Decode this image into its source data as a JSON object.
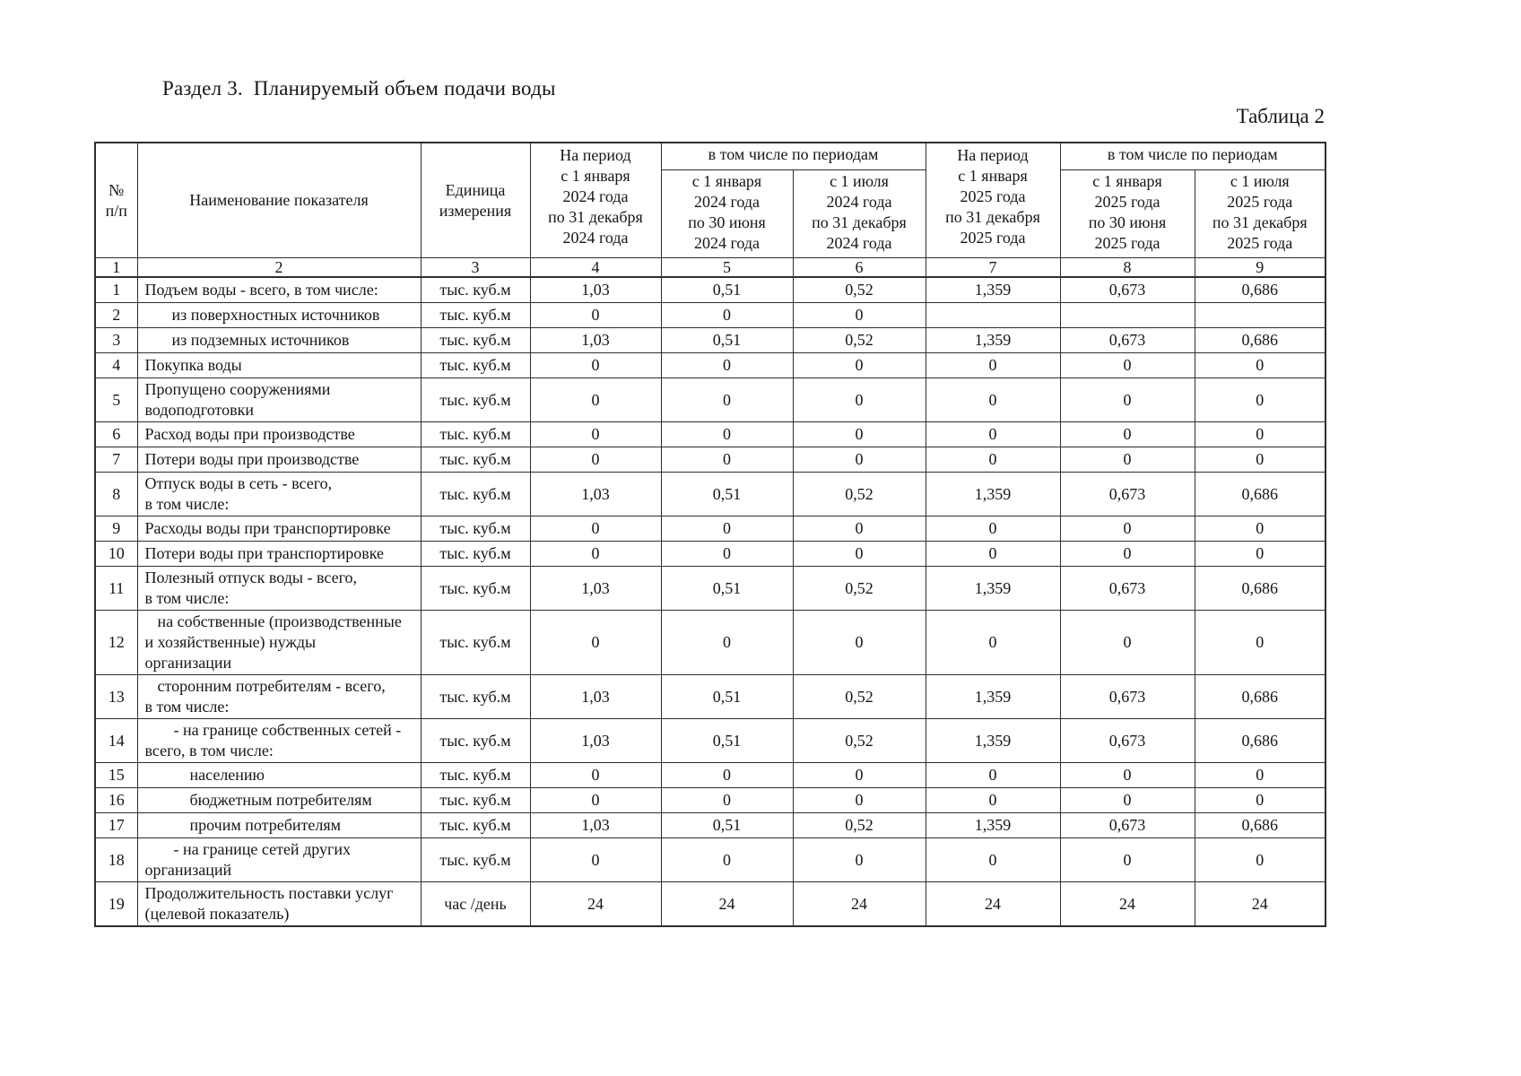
{
  "page": {
    "section_title": "Раздел 3.  Планируемый объем подачи воды",
    "table_label": "Таблица 2"
  },
  "table": {
    "header": {
      "num": "№\nп/п",
      "name": "Наименование показателя",
      "unit": "Единица\nизмерения",
      "period_2024": "На период\nс 1 января\n2024 года\nпо 31 декабря\n2024 года",
      "including_2024": "в том числе по периодам",
      "sub_2024_first_half": "с 1 января\n2024 года\nпо 30 июня\n2024 года",
      "sub_2024_second_half": "с 1 июля\n2024 года\nпо 31 декабря\n2024 года",
      "period_2025": "На период\nс 1 января\n2025 года\nпо 31 декабря\n2025 года",
      "including_2025": "в том числе по периодам",
      "sub_2025_first_half": "с 1 января\n2025 года\nпо 30 июня\n2025 года",
      "sub_2025_second_half": "с 1 июля\n2025 года\nпо 31 декабря\n2025 года",
      "column_numbers": [
        "1",
        "2",
        "3",
        "4",
        "5",
        "6",
        "7",
        "8",
        "9"
      ]
    },
    "rows": [
      {
        "num": "1",
        "indent": 0,
        "lines": 1,
        "name": "Подъем воды - всего, в том числе:",
        "unit": "тыс. куб.м",
        "values": [
          "1,03",
          "0,51",
          "0,52",
          "1,359",
          "0,673",
          "0,686"
        ]
      },
      {
        "num": "2",
        "indent": 1,
        "lines": 1,
        "name": "из поверхностных источников",
        "unit": "тыс. куб.м",
        "values": [
          "0",
          "0",
          "0",
          "",
          "",
          ""
        ]
      },
      {
        "num": "3",
        "indent": 1,
        "lines": 1,
        "name": "из подземных источников",
        "unit": "тыс. куб.м",
        "values": [
          "1,03",
          "0,51",
          "0,52",
          "1,359",
          "0,673",
          "0,686"
        ]
      },
      {
        "num": "4",
        "indent": 0,
        "lines": 1,
        "name": "Покупка воды",
        "unit": "тыс. куб.м",
        "values": [
          "0",
          "0",
          "0",
          "0",
          "0",
          "0"
        ]
      },
      {
        "num": "5",
        "indent": 0,
        "lines": 2,
        "name": "Пропущено сооружениями\nводоподготовки",
        "unit": "тыс. куб.м",
        "values": [
          "0",
          "0",
          "0",
          "0",
          "0",
          "0"
        ]
      },
      {
        "num": "6",
        "indent": 0,
        "lines": 1,
        "name": "Расход воды при производстве",
        "unit": "тыс. куб.м",
        "values": [
          "0",
          "0",
          "0",
          "0",
          "0",
          "0"
        ]
      },
      {
        "num": "7",
        "indent": 0,
        "lines": 1,
        "name": "Потери воды при производстве",
        "unit": "тыс. куб.м",
        "values": [
          "0",
          "0",
          "0",
          "0",
          "0",
          "0"
        ]
      },
      {
        "num": "8",
        "indent": 0,
        "lines": 2,
        "name": "Отпуск воды в сеть - всего,\nв том числе:",
        "unit": "тыс. куб.м",
        "values": [
          "1,03",
          "0,51",
          "0,52",
          "1,359",
          "0,673",
          "0,686"
        ]
      },
      {
        "num": "9",
        "indent": 0,
        "lines": 1,
        "name": "Расходы воды при транспортировке",
        "unit": "тыс. куб.м",
        "values": [
          "0",
          "0",
          "0",
          "0",
          "0",
          "0"
        ]
      },
      {
        "num": "10",
        "indent": 0,
        "lines": 1,
        "name": "Потери воды при транспортировке",
        "unit": "тыс. куб.м",
        "values": [
          "0",
          "0",
          "0",
          "0",
          "0",
          "0"
        ]
      },
      {
        "num": "11",
        "indent": 0,
        "lines": 2,
        "name": "Полезный отпуск воды - всего,\nв том числе:",
        "unit": "тыс. куб.м",
        "values": [
          "1,03",
          "0,51",
          "0,52",
          "1,359",
          "0,673",
          "0,686"
        ]
      },
      {
        "num": "12",
        "indent": 2,
        "lines": 3,
        "name": "на собственные (производственные\nи хозяйственные) нужды\nорганизации",
        "unit": "тыс. куб.м",
        "values": [
          "0",
          "0",
          "0",
          "0",
          "0",
          "0"
        ]
      },
      {
        "num": "13",
        "indent": 2,
        "lines": 2,
        "name": "сторонним потребителям - всего,\nв том числе:",
        "unit": "тыс. куб.м",
        "values": [
          "1,03",
          "0,51",
          "0,52",
          "1,359",
          "0,673",
          "0,686"
        ]
      },
      {
        "num": "14",
        "indent": 3,
        "lines": 2,
        "name": "- на границе собственных сетей -\nвсего, в том числе:",
        "unit": "тыс. куб.м",
        "values": [
          "1,03",
          "0,51",
          "0,52",
          "1,359",
          "0,673",
          "0,686"
        ]
      },
      {
        "num": "15",
        "indent": 4,
        "lines": 1,
        "name": "населению",
        "unit": "тыс. куб.м",
        "values": [
          "0",
          "0",
          "0",
          "0",
          "0",
          "0"
        ]
      },
      {
        "num": "16",
        "indent": 4,
        "lines": 1,
        "name": "бюджетным потребителям",
        "unit": "тыс. куб.м",
        "values": [
          "0",
          "0",
          "0",
          "0",
          "0",
          "0"
        ]
      },
      {
        "num": "17",
        "indent": 4,
        "lines": 1,
        "name": "прочим потребителям",
        "unit": "тыс. куб.м",
        "values": [
          "1,03",
          "0,51",
          "0,52",
          "1,359",
          "0,673",
          "0,686"
        ]
      },
      {
        "num": "18",
        "indent": 3,
        "lines": 2,
        "name": "- на границе сетей других\nорганизаций",
        "unit": "тыс. куб.м",
        "values": [
          "0",
          "0",
          "0",
          "0",
          "0",
          "0"
        ]
      },
      {
        "num": "19",
        "indent": 0,
        "lines": 2,
        "name": "Продолжительность поставки услуг\n(целевой показатель)",
        "unit": "час /день",
        "values": [
          "24",
          "24",
          "24",
          "24",
          "24",
          "24"
        ]
      }
    ]
  }
}
